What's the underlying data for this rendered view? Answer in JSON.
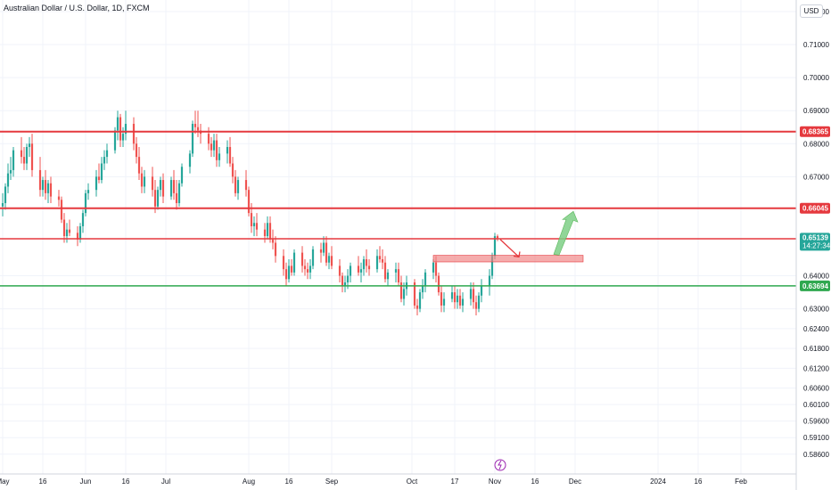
{
  "header": {
    "title": "Australian Dollar / U.S. Dollar, 1D, FXCM",
    "currency": "USD"
  },
  "chart_data": {
    "type": "candlestick",
    "ylim": [
      0.58,
      0.7235
    ],
    "y_ticks": [
      "0.72000",
      "0.71000",
      "0.70000",
      "0.69000",
      "0.68000",
      "0.67000",
      "0.64000",
      "0.63000",
      "0.62400",
      "0.61800",
      "0.61200",
      "0.60600",
      "0.60100",
      "0.59600",
      "0.59100",
      "0.58600"
    ],
    "x_ticks": [
      {
        "label": "May",
        "day": 0
      },
      {
        "label": "16",
        "day": 15
      },
      {
        "label": "Jun",
        "day": 31
      },
      {
        "label": "16",
        "day": 46
      },
      {
        "label": "Jul",
        "day": 61
      },
      {
        "label": "Aug",
        "day": 92
      },
      {
        "label": "16",
        "day": 107
      },
      {
        "label": "Sep",
        "day": 123
      },
      {
        "label": "Oct",
        "day": 153
      },
      {
        "label": "17",
        "day": 169
      },
      {
        "label": "Nov",
        "day": 184
      },
      {
        "label": "16",
        "day": 199
      },
      {
        "label": "Dec",
        "day": 214
      },
      {
        "label": "2024",
        "day": 245
      },
      {
        "label": "16",
        "day": 260
      },
      {
        "label": "Feb",
        "day": 276
      }
    ],
    "horizontal_levels": [
      {
        "price": 0.68365,
        "label": "0.68365",
        "color": "#e5393e",
        "width": 2
      },
      {
        "price": 0.66045,
        "label": "0.66045",
        "color": "#e5393e",
        "width": 2
      },
      {
        "price": 0.65122,
        "label": "0.65122",
        "color": "#e5393e",
        "width": 1.5
      },
      {
        "price": 0.63694,
        "label": "0.63694",
        "color": "#2fa84f",
        "width": 1.5
      }
    ],
    "current_price": {
      "price": 0.65139,
      "label": "0.65139",
      "countdown": "14:27:34",
      "color": "#26a69a"
    },
    "zone": {
      "from_day": 161,
      "to_day": 217,
      "top": 0.6462,
      "bottom": 0.6442,
      "color": "#f08080"
    },
    "arrows": [
      {
        "direction": "down",
        "color": "#e5393e"
      },
      {
        "direction": "up",
        "color": "#7ecf86"
      }
    ],
    "candles": [
      [
        0,
        0.661,
        0.665,
        0.658,
        0.662
      ],
      [
        1,
        0.662,
        0.668,
        0.66,
        0.667
      ],
      [
        2,
        0.667,
        0.674,
        0.665,
        0.671
      ],
      [
        3,
        0.671,
        0.676,
        0.669,
        0.672
      ],
      [
        4,
        0.672,
        0.679,
        0.67,
        0.678
      ],
      [
        7,
        0.678,
        0.682,
        0.674,
        0.676
      ],
      [
        8,
        0.676,
        0.679,
        0.672,
        0.674
      ],
      [
        9,
        0.674,
        0.68,
        0.672,
        0.679
      ],
      [
        10,
        0.679,
        0.682,
        0.676,
        0.68
      ],
      [
        11,
        0.68,
        0.683,
        0.67,
        0.672
      ],
      [
        14,
        0.672,
        0.676,
        0.664,
        0.666
      ],
      [
        15,
        0.666,
        0.67,
        0.664,
        0.669
      ],
      [
        16,
        0.669,
        0.672,
        0.663,
        0.665
      ],
      [
        17,
        0.665,
        0.669,
        0.662,
        0.668
      ],
      [
        18,
        0.668,
        0.67,
        0.662,
        0.664
      ],
      [
        21,
        0.664,
        0.666,
        0.661,
        0.663
      ],
      [
        22,
        0.663,
        0.664,
        0.656,
        0.657
      ],
      [
        23,
        0.657,
        0.659,
        0.65,
        0.652
      ],
      [
        24,
        0.652,
        0.656,
        0.65,
        0.654
      ],
      [
        25,
        0.654,
        0.657,
        0.652,
        0.653
      ],
      [
        28,
        0.653,
        0.655,
        0.649,
        0.651
      ],
      [
        29,
        0.651,
        0.656,
        0.65,
        0.655
      ],
      [
        30,
        0.655,
        0.66,
        0.653,
        0.659
      ],
      [
        31,
        0.659,
        0.666,
        0.658,
        0.665
      ],
      [
        32,
        0.665,
        0.668,
        0.663,
        0.666
      ],
      [
        35,
        0.666,
        0.672,
        0.664,
        0.67
      ],
      [
        36,
        0.67,
        0.674,
        0.668,
        0.669
      ],
      [
        37,
        0.669,
        0.676,
        0.668,
        0.674
      ],
      [
        38,
        0.674,
        0.678,
        0.672,
        0.676
      ],
      [
        39,
        0.676,
        0.68,
        0.674,
        0.678
      ],
      [
        42,
        0.678,
        0.685,
        0.677,
        0.684
      ],
      [
        43,
        0.684,
        0.69,
        0.681,
        0.688
      ],
      [
        44,
        0.688,
        0.689,
        0.679,
        0.681
      ],
      [
        45,
        0.681,
        0.685,
        0.679,
        0.683
      ],
      [
        46,
        0.683,
        0.69,
        0.681,
        0.686
      ],
      [
        49,
        0.686,
        0.688,
        0.678,
        0.68
      ],
      [
        50,
        0.68,
        0.682,
        0.674,
        0.676
      ],
      [
        51,
        0.676,
        0.679,
        0.669,
        0.671
      ],
      [
        52,
        0.671,
        0.673,
        0.665,
        0.667
      ],
      [
        53,
        0.667,
        0.672,
        0.665,
        0.67
      ],
      [
        56,
        0.67,
        0.673,
        0.664,
        0.666
      ],
      [
        57,
        0.666,
        0.669,
        0.659,
        0.661
      ],
      [
        58,
        0.661,
        0.667,
        0.66,
        0.666
      ],
      [
        59,
        0.666,
        0.67,
        0.664,
        0.669
      ],
      [
        60,
        0.669,
        0.671,
        0.662,
        0.664
      ],
      [
        63,
        0.664,
        0.67,
        0.663,
        0.669
      ],
      [
        64,
        0.669,
        0.672,
        0.663,
        0.665
      ],
      [
        65,
        0.665,
        0.669,
        0.66,
        0.662
      ],
      [
        66,
        0.662,
        0.669,
        0.661,
        0.668
      ],
      [
        67,
        0.668,
        0.674,
        0.667,
        0.673
      ],
      [
        70,
        0.673,
        0.678,
        0.671,
        0.677
      ],
      [
        71,
        0.677,
        0.687,
        0.676,
        0.686
      ],
      [
        72,
        0.686,
        0.69,
        0.683,
        0.685
      ],
      [
        73,
        0.685,
        0.69,
        0.682,
        0.684
      ],
      [
        74,
        0.684,
        0.686,
        0.68,
        0.683
      ],
      [
        77,
        0.683,
        0.685,
        0.678,
        0.68
      ],
      [
        78,
        0.68,
        0.682,
        0.676,
        0.678
      ],
      [
        79,
        0.678,
        0.683,
        0.676,
        0.681
      ],
      [
        80,
        0.681,
        0.683,
        0.673,
        0.675
      ],
      [
        81,
        0.675,
        0.679,
        0.673,
        0.677
      ],
      [
        84,
        0.677,
        0.681,
        0.674,
        0.679
      ],
      [
        85,
        0.679,
        0.682,
        0.673,
        0.674
      ],
      [
        86,
        0.674,
        0.676,
        0.668,
        0.67
      ],
      [
        87,
        0.67,
        0.672,
        0.664,
        0.665
      ],
      [
        88,
        0.665,
        0.67,
        0.663,
        0.669
      ],
      [
        91,
        0.669,
        0.672,
        0.664,
        0.666
      ],
      [
        92,
        0.666,
        0.667,
        0.658,
        0.659
      ],
      [
        93,
        0.659,
        0.662,
        0.653,
        0.655
      ],
      [
        94,
        0.655,
        0.658,
        0.652,
        0.656
      ],
      [
        95,
        0.656,
        0.659,
        0.652,
        0.654
      ],
      [
        98,
        0.654,
        0.656,
        0.65,
        0.652
      ],
      [
        99,
        0.652,
        0.658,
        0.651,
        0.656
      ],
      [
        100,
        0.656,
        0.658,
        0.65,
        0.651
      ],
      [
        101,
        0.651,
        0.654,
        0.648,
        0.65
      ],
      [
        102,
        0.65,
        0.652,
        0.644,
        0.646
      ],
      [
        105,
        0.646,
        0.648,
        0.64,
        0.642
      ],
      [
        106,
        0.642,
        0.644,
        0.637,
        0.639
      ],
      [
        107,
        0.639,
        0.645,
        0.638,
        0.643
      ],
      [
        108,
        0.643,
        0.645,
        0.64,
        0.641
      ],
      [
        109,
        0.641,
        0.648,
        0.64,
        0.647
      ],
      [
        112,
        0.647,
        0.649,
        0.641,
        0.643
      ],
      [
        113,
        0.643,
        0.645,
        0.64,
        0.642
      ],
      [
        114,
        0.642,
        0.644,
        0.639,
        0.641
      ],
      [
        115,
        0.641,
        0.645,
        0.639,
        0.643
      ],
      [
        116,
        0.643,
        0.649,
        0.642,
        0.648
      ],
      [
        119,
        0.648,
        0.65,
        0.644,
        0.647
      ],
      [
        120,
        0.647,
        0.652,
        0.646,
        0.65
      ],
      [
        121,
        0.65,
        0.652,
        0.643,
        0.644
      ],
      [
        122,
        0.644,
        0.647,
        0.642,
        0.646
      ],
      [
        123,
        0.646,
        0.649,
        0.642,
        0.643
      ],
      [
        126,
        0.643,
        0.645,
        0.638,
        0.64
      ],
      [
        127,
        0.64,
        0.641,
        0.635,
        0.637
      ],
      [
        128,
        0.637,
        0.64,
        0.635,
        0.638
      ],
      [
        129,
        0.638,
        0.642,
        0.636,
        0.64
      ],
      [
        130,
        0.64,
        0.644,
        0.638,
        0.643
      ],
      [
        133,
        0.643,
        0.646,
        0.64,
        0.641
      ],
      [
        134,
        0.641,
        0.644,
        0.638,
        0.642
      ],
      [
        135,
        0.642,
        0.646,
        0.64,
        0.645
      ],
      [
        136,
        0.645,
        0.648,
        0.641,
        0.643
      ],
      [
        137,
        0.643,
        0.645,
        0.64,
        0.642
      ],
      [
        140,
        0.642,
        0.648,
        0.641,
        0.646
      ],
      [
        141,
        0.646,
        0.649,
        0.644,
        0.645
      ],
      [
        142,
        0.645,
        0.648,
        0.642,
        0.644
      ],
      [
        143,
        0.644,
        0.646,
        0.638,
        0.639
      ],
      [
        144,
        0.639,
        0.642,
        0.637,
        0.641
      ],
      [
        147,
        0.641,
        0.644,
        0.638,
        0.642
      ],
      [
        148,
        0.642,
        0.644,
        0.637,
        0.638
      ],
      [
        149,
        0.638,
        0.64,
        0.632,
        0.633
      ],
      [
        150,
        0.633,
        0.638,
        0.631,
        0.636
      ],
      [
        151,
        0.636,
        0.64,
        0.634,
        0.638
      ],
      [
        154,
        0.638,
        0.639,
        0.63,
        0.631
      ],
      [
        155,
        0.631,
        0.633,
        0.628,
        0.63
      ],
      [
        156,
        0.63,
        0.636,
        0.629,
        0.635
      ],
      [
        157,
        0.635,
        0.639,
        0.633,
        0.637
      ],
      [
        158,
        0.637,
        0.642,
        0.635,
        0.641
      ],
      [
        161,
        0.641,
        0.645,
        0.639,
        0.644
      ],
      [
        162,
        0.644,
        0.646,
        0.638,
        0.64
      ],
      [
        163,
        0.64,
        0.641,
        0.634,
        0.635
      ],
      [
        164,
        0.635,
        0.637,
        0.629,
        0.631
      ],
      [
        165,
        0.631,
        0.635,
        0.629,
        0.633
      ],
      [
        168,
        0.633,
        0.637,
        0.632,
        0.635
      ],
      [
        169,
        0.635,
        0.637,
        0.63,
        0.632
      ],
      [
        170,
        0.632,
        0.636,
        0.63,
        0.634
      ],
      [
        171,
        0.634,
        0.636,
        0.63,
        0.631
      ],
      [
        172,
        0.631,
        0.635,
        0.629,
        0.633
      ],
      [
        175,
        0.633,
        0.638,
        0.631,
        0.636
      ],
      [
        176,
        0.636,
        0.638,
        0.63,
        0.632
      ],
      [
        177,
        0.632,
        0.634,
        0.628,
        0.63
      ],
      [
        178,
        0.63,
        0.635,
        0.629,
        0.634
      ],
      [
        179,
        0.634,
        0.639,
        0.632,
        0.637
      ],
      [
        182,
        0.637,
        0.642,
        0.634,
        0.64
      ],
      [
        183,
        0.64,
        0.647,
        0.639,
        0.646
      ],
      [
        184,
        0.646,
        0.653,
        0.645,
        0.652
      ],
      [
        185,
        0.652,
        0.6525,
        0.6505,
        0.6514
      ]
    ]
  }
}
